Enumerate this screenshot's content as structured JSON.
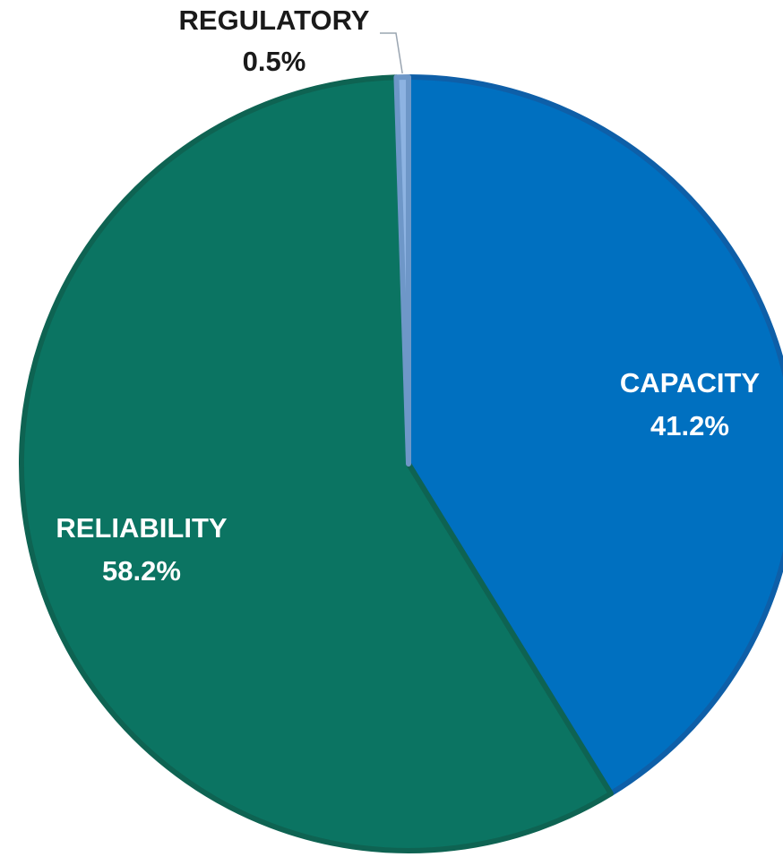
{
  "chart_data": {
    "type": "pie",
    "slices": [
      {
        "label": "CAPACITY",
        "value": 41.2,
        "value_label": "41.2%",
        "color": "#0070C0",
        "edge_color": "#0E5FA8",
        "text_color": "#ffffff"
      },
      {
        "label": "RELIABILITY",
        "value": 58.2,
        "value_label": "58.2%",
        "color": "#0B7462",
        "edge_color": "#0E6352",
        "text_color": "#ffffff"
      },
      {
        "label": "REGULATORY",
        "value": 0.5,
        "value_label": "0.5%",
        "color": "#8DB3E2",
        "edge_color": "#6E97C8",
        "text_color": "#1a1a1a"
      }
    ],
    "start": "12 o'clock",
    "direction": "clockwise",
    "title": "",
    "legend": "none"
  }
}
